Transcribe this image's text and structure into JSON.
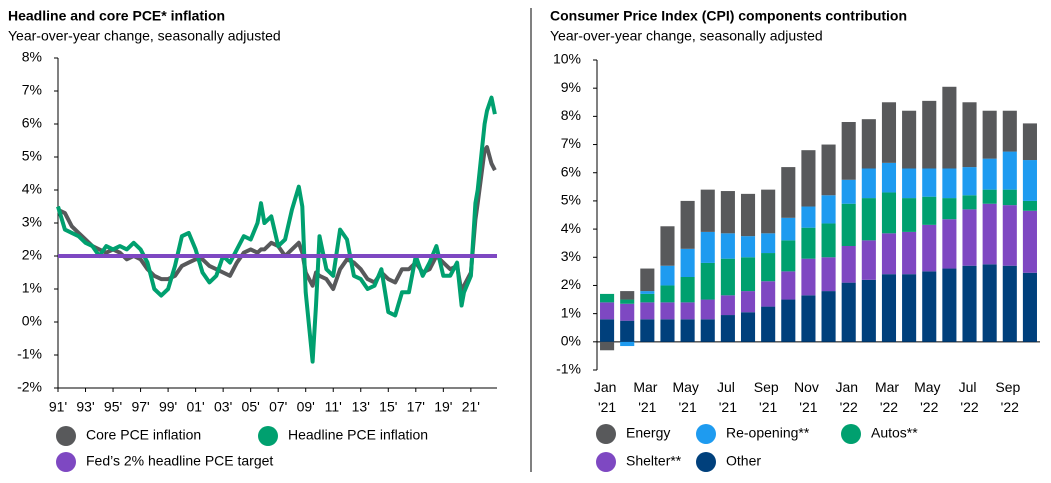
{
  "chart_data": [
    {
      "type": "line",
      "title": "Headline and core PCE* inflation",
      "subtitle": "Year-over-year change, seasonally adjusted",
      "x": [
        1991.0,
        1991.5,
        1992.0,
        1992.5,
        1993.0,
        1993.5,
        1994.0,
        1994.5,
        1995.0,
        1995.5,
        1996.0,
        1996.5,
        1997.0,
        1997.5,
        1998.0,
        1998.5,
        1999.0,
        1999.5,
        2000.0,
        2000.5,
        2001.0,
        2001.5,
        2002.0,
        2002.5,
        2003.0,
        2003.5,
        2004.0,
        2004.5,
        2005.0,
        2005.5,
        2005.75,
        2006.0,
        2006.5,
        2007.0,
        2007.5,
        2008.0,
        2008.5,
        2008.75,
        2009.0,
        2009.5,
        2009.75,
        2010.0,
        2010.5,
        2011.0,
        2011.5,
        2012.0,
        2012.5,
        2013.0,
        2013.5,
        2014.0,
        2014.5,
        2015.0,
        2015.5,
        2016.0,
        2016.5,
        2017.0,
        2017.5,
        2018.0,
        2018.5,
        2019.0,
        2019.5,
        2020.0,
        2020.33,
        2020.5,
        2021.0,
        2021.33,
        2021.5,
        2022.0,
        2022.17,
        2022.5,
        2022.75
      ],
      "series": [
        {
          "name": "Core PCE inflation",
          "color": "#58595b",
          "values": [
            3.4,
            3.3,
            2.9,
            2.7,
            2.5,
            2.3,
            2.2,
            2.1,
            2.2,
            2.1,
            1.9,
            2.0,
            1.9,
            1.6,
            1.4,
            1.3,
            1.3,
            1.4,
            1.7,
            1.8,
            1.9,
            1.9,
            1.7,
            1.6,
            1.5,
            1.4,
            1.8,
            2.1,
            2.2,
            2.1,
            2.2,
            2.2,
            2.4,
            2.3,
            2.0,
            2.2,
            2.4,
            2.1,
            1.5,
            1.1,
            1.5,
            1.4,
            1.3,
            1.0,
            1.6,
            1.9,
            1.8,
            1.6,
            1.3,
            1.2,
            1.5,
            1.3,
            1.2,
            1.6,
            1.6,
            1.8,
            1.5,
            1.6,
            2.0,
            1.8,
            1.6,
            1.7,
            0.9,
            1.1,
            1.5,
            3.1,
            3.6,
            5.2,
            5.3,
            4.8,
            4.6
          ]
        },
        {
          "name": "Headline PCE inflation",
          "color": "#00a06f",
          "values": [
            3.5,
            2.8,
            2.7,
            2.6,
            2.4,
            2.3,
            2.0,
            2.3,
            2.2,
            2.3,
            2.2,
            2.4,
            2.2,
            1.8,
            1.0,
            0.8,
            1.0,
            1.7,
            2.6,
            2.7,
            2.2,
            1.5,
            1.2,
            1.4,
            2.0,
            1.8,
            2.2,
            2.6,
            2.5,
            3.0,
            3.6,
            3.0,
            3.2,
            2.3,
            2.5,
            3.4,
            4.1,
            3.5,
            0.9,
            -1.2,
            0.5,
            2.6,
            1.6,
            1.4,
            2.8,
            2.5,
            1.4,
            1.3,
            1.0,
            1.1,
            1.6,
            0.3,
            0.2,
            0.9,
            0.9,
            2.0,
            1.4,
            1.8,
            2.3,
            1.4,
            1.4,
            1.8,
            0.5,
            0.9,
            1.4,
            3.6,
            4.0,
            6.0,
            6.4,
            6.8,
            6.3
          ]
        }
      ],
      "target": {
        "name": "Fed’s 2% headline PCE target",
        "value": 2,
        "color": "#7e48c2"
      },
      "xlim": [
        1991,
        2022.9
      ],
      "xticks": [
        {
          "value": 1991,
          "label": "91'"
        },
        {
          "value": 1993,
          "label": "93'"
        },
        {
          "value": 1995,
          "label": "95'"
        },
        {
          "value": 1997,
          "label": "97'"
        },
        {
          "value": 1999,
          "label": "99'"
        },
        {
          "value": 2001,
          "label": "01'"
        },
        {
          "value": 2003,
          "label": "03'"
        },
        {
          "value": 2005,
          "label": "05'"
        },
        {
          "value": 2007,
          "label": "07'"
        },
        {
          "value": 2009,
          "label": "09'"
        },
        {
          "value": 2011,
          "label": "11'"
        },
        {
          "value": 2013,
          "label": "13'"
        },
        {
          "value": 2015,
          "label": "15'"
        },
        {
          "value": 2017,
          "label": "17'"
        },
        {
          "value": 2019,
          "label": "19'"
        },
        {
          "value": 2021,
          "label": "21'"
        }
      ],
      "ylim": [
        -2,
        8
      ],
      "yticks": [
        {
          "value": -2,
          "label": "-2%"
        },
        {
          "value": -1,
          "label": "-1%"
        },
        {
          "value": 0,
          "label": "0%"
        },
        {
          "value": 1,
          "label": "1%"
        },
        {
          "value": 2,
          "label": "2%"
        },
        {
          "value": 3,
          "label": "3%"
        },
        {
          "value": 4,
          "label": "4%"
        },
        {
          "value": 5,
          "label": "5%"
        },
        {
          "value": 6,
          "label": "6%"
        },
        {
          "value": 7,
          "label": "7%"
        },
        {
          "value": 8,
          "label": "8%"
        }
      ]
    },
    {
      "type": "stacked_bar",
      "title": "Consumer Price Index (CPI) components contribution",
      "subtitle": "Year-over-year change, seasonally adjusted",
      "categories": [
        "Jan '21",
        null,
        "Mar '21",
        null,
        "May '21",
        null,
        "Jul '21",
        null,
        "Sep '21",
        null,
        "Nov '21",
        null,
        "Jan '22",
        null,
        "Mar '22",
        null,
        "May '22",
        null,
        "Jul '22",
        null,
        "Sep '22",
        null
      ],
      "series": [
        {
          "name": "Energy",
          "color": "#58595b",
          "values": [
            -0.3,
            0.3,
            0.8,
            1.4,
            1.7,
            1.5,
            1.5,
            1.5,
            1.55,
            1.8,
            2.0,
            1.8,
            2.05,
            1.75,
            2.15,
            2.05,
            2.4,
            2.9,
            2.3,
            1.7,
            1.45,
            1.3
          ]
        },
        {
          "name": "Re-opening**",
          "color": "#1e9bf0",
          "values": [
            0,
            -0.15,
            0.1,
            0.7,
            1.0,
            1.1,
            0.9,
            0.75,
            0.7,
            0.8,
            0.75,
            1.0,
            0.85,
            1.05,
            1.05,
            1.05,
            1.0,
            1.05,
            1.0,
            1.1,
            1.35,
            1.45
          ]
        },
        {
          "name": "Autos**",
          "color": "#00a06f",
          "values": [
            0.3,
            0.15,
            0.3,
            0.6,
            0.9,
            1.3,
            1.3,
            1.2,
            1.0,
            1.1,
            1.1,
            1.2,
            1.5,
            1.5,
            1.45,
            1.2,
            1.0,
            0.75,
            0.5,
            0.5,
            0.55,
            0.35
          ]
        },
        {
          "name": "Shelter**",
          "color": "#7e48c2",
          "values": [
            0.6,
            0.6,
            0.6,
            0.6,
            0.6,
            0.7,
            0.7,
            0.75,
            0.9,
            1.0,
            1.3,
            1.2,
            1.3,
            1.4,
            1.45,
            1.5,
            1.65,
            1.75,
            2.0,
            2.15,
            2.15,
            2.2
          ]
        },
        {
          "name": "Other",
          "color": "#00407c",
          "values": [
            0.8,
            0.75,
            0.8,
            0.8,
            0.8,
            0.8,
            0.95,
            1.05,
            1.25,
            1.5,
            1.65,
            1.8,
            2.1,
            2.2,
            2.4,
            2.4,
            2.5,
            2.6,
            2.7,
            2.75,
            2.7,
            2.45
          ]
        }
      ],
      "ylim": [
        -1,
        10
      ],
      "yticks": [
        {
          "value": -1,
          "label": "-1%"
        },
        {
          "value": 0,
          "label": "0%"
        },
        {
          "value": 1,
          "label": "1%"
        },
        {
          "value": 2,
          "label": "2%"
        },
        {
          "value": 3,
          "label": "3%"
        },
        {
          "value": 4,
          "label": "4%"
        },
        {
          "value": 5,
          "label": "5%"
        },
        {
          "value": 6,
          "label": "6%"
        },
        {
          "value": 7,
          "label": "7%"
        },
        {
          "value": 8,
          "label": "8%"
        },
        {
          "value": 9,
          "label": "9%"
        },
        {
          "value": 10,
          "label": "10%"
        }
      ]
    }
  ]
}
